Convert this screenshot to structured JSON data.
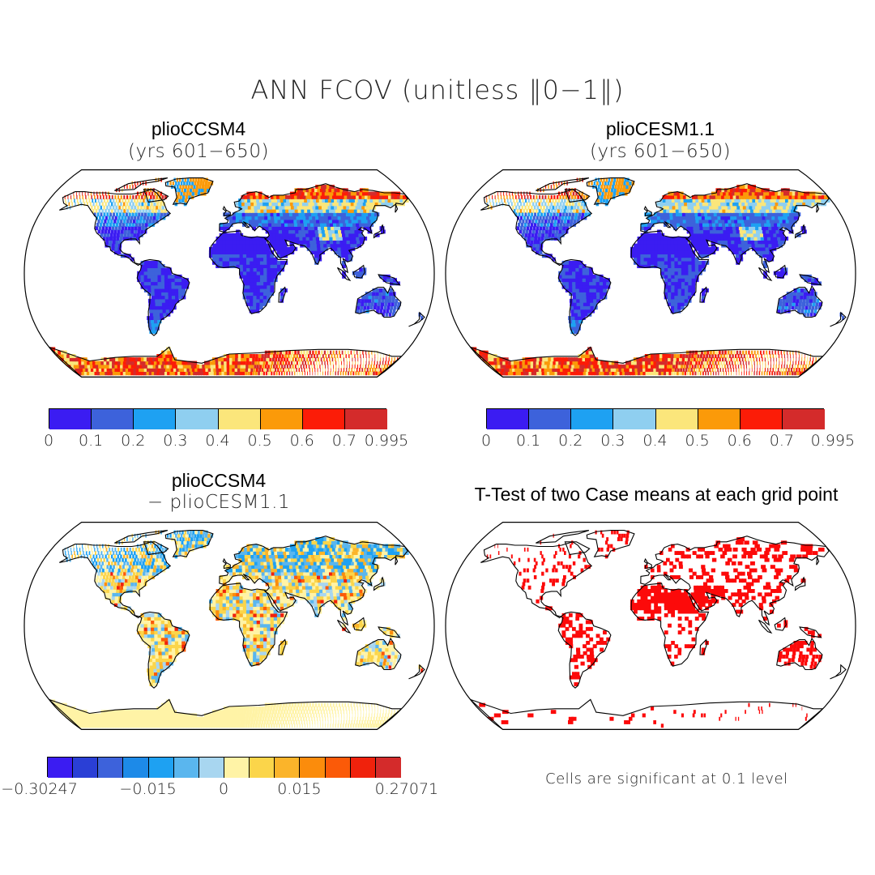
{
  "figure": {
    "title": "ANN FCOV (unitless ‖0−1‖)"
  },
  "panels": [
    {
      "id": "p1",
      "title": "plioCCSM4",
      "subtitle": "(yrs 601−650)",
      "colorbar": {
        "colors": [
          "#3b1cf2",
          "#3d62db",
          "#1ea1f2",
          "#8fcff0",
          "#fbe67b",
          "#fb9a09",
          "#fc1c07",
          "#d42b2b"
        ],
        "ticks": [
          "0",
          "0.1",
          "0.2",
          "0.3",
          "0.4",
          "0.5",
          "0.6",
          "0.7",
          "0.995"
        ]
      }
    },
    {
      "id": "p2",
      "title": "plioCESM1.1",
      "subtitle": "(yrs 601−650)",
      "colorbar": {
        "colors": [
          "#3b1cf2",
          "#3d62db",
          "#1ea1f2",
          "#8fcff0",
          "#fbe67b",
          "#fb9a09",
          "#fc1c07",
          "#d42b2b"
        ],
        "ticks": [
          "0",
          "0.1",
          "0.2",
          "0.3",
          "0.4",
          "0.5",
          "0.6",
          "0.7",
          "0.995"
        ]
      }
    },
    {
      "id": "p3",
      "title": "plioCCSM4",
      "subtitle": "− plioCESM1.1",
      "colorbar": {
        "colors": [
          "#3b1cf2",
          "#2a3fd6",
          "#3d62db",
          "#1d8ae8",
          "#1ea1f2",
          "#5ab6ee",
          "#a8d6f0",
          "#fff3a6",
          "#fbd54a",
          "#fbb42a",
          "#fb8c0c",
          "#fb5a08",
          "#f0220c",
          "#d42b2b"
        ],
        "ticks": [
          "−0.30247",
          "−0.015",
          "0",
          "0.015",
          "0.27071"
        ]
      }
    },
    {
      "id": "p4",
      "title": "T-Test of two Case means at each grid point",
      "note": "Cells are significant at 0.1 level"
    }
  ]
}
